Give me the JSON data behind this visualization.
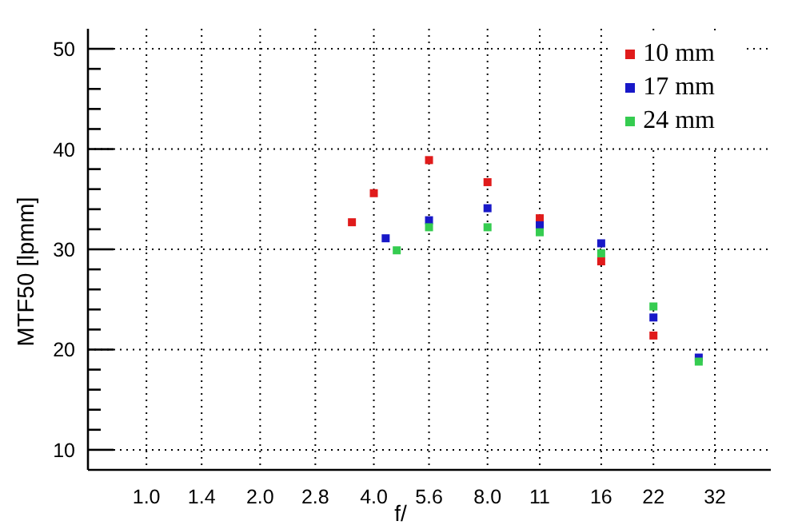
{
  "chart_data": {
    "type": "scatter",
    "xlabel": "f/",
    "ylabel": "MTF50 [lpmm]",
    "series": [
      {
        "name": "10 mm",
        "color": "#e01b1b",
        "x": [
          3.5,
          4,
          5.6,
          8,
          11,
          16,
          22
        ],
        "values": [
          32.7,
          35.6,
          38.9,
          36.7,
          33.1,
          28.8,
          21.4
        ]
      },
      {
        "name": "17 mm",
        "color": "#1818c8",
        "x": [
          4.3,
          5.6,
          8,
          11,
          16,
          22,
          29
        ],
        "values": [
          31.1,
          32.9,
          34.1,
          32.4,
          30.6,
          23.2,
          19.2
        ]
      },
      {
        "name": "24 mm",
        "color": "#35cc50",
        "x": [
          4.6,
          5.6,
          8,
          11,
          16,
          22,
          29
        ],
        "values": [
          29.9,
          32.2,
          32.2,
          31.7,
          29.6,
          24.3,
          18.8
        ]
      }
    ],
    "log": "x",
    "xlim": [
      0.7,
      45
    ],
    "xticks": [
      {
        "value": 1,
        "label": "1.0"
      },
      1.4,
      {
        "value": 2,
        "label": "2.0"
      },
      2.8,
      {
        "value": 4,
        "label": "4.0"
      },
      5.6,
      {
        "value": 8,
        "label": "8.0"
      },
      11,
      16,
      22,
      32
    ],
    "ylim": [
      8,
      52
    ],
    "yticks": [
      10,
      {
        "value": 12,
        "label": null
      },
      {
        "value": 14,
        "label": null
      },
      {
        "value": 16,
        "label": null
      },
      {
        "value": 18,
        "label": null
      },
      20,
      {
        "value": 22,
        "label": null
      },
      {
        "value": 24,
        "label": null
      },
      {
        "value": 26,
        "label": null
      },
      {
        "value": 28,
        "label": null
      },
      30,
      {
        "value": 32,
        "label": null
      },
      {
        "value": 34,
        "label": null
      },
      {
        "value": 36,
        "label": null
      },
      {
        "value": 38,
        "label": null
      },
      40,
      {
        "value": 42,
        "label": null
      },
      {
        "value": 44,
        "label": null
      },
      {
        "value": 46,
        "label": null
      },
      {
        "value": 48,
        "label": null
      },
      50
    ],
    "grid": true,
    "legend": "top right",
    "marker": "square"
  }
}
